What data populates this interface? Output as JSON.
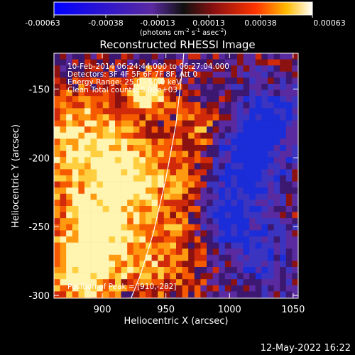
{
  "colorbar": {
    "tick_labels": [
      "-0.00063",
      "-0.00038",
      "-0.00013",
      "0.00013",
      "0.00038",
      "0.00063"
    ],
    "unit_label": "(photons cm",
    "unit_sup1": "-2",
    "unit_mid": " s",
    "unit_sup2": "-1",
    "unit_end": " asec",
    "unit_sup3": "-2",
    "unit_close": ")"
  },
  "chart_data": {
    "type": "heatmap",
    "title": "Reconstructed RHESSI Image",
    "xlabel": "Heliocentric X (arcsec)",
    "ylabel": "Heliocentric Y (arcsec)",
    "xlim": [
      862,
      1054
    ],
    "ylim": [
      -302,
      -124
    ],
    "x_ticks": [
      900,
      950,
      1000,
      1050
    ],
    "y_ticks": [
      -150,
      -200,
      -250,
      -300
    ],
    "colormap_range": [
      -0.00063,
      0.00063
    ],
    "annotations": [
      "10-Feb-2014 06:24:44.000 to 06:27:04.000",
      "Detectors: 3F 4F 5F 6F 7F 8F, Att 0",
      "Energy Range: 25.0 - 50.0 keV",
      "Clean    Total counts: 5.09e+03"
    ],
    "peak_label": "Position of Peak = [910,-282]",
    "peak": [
      910,
      -282
    ],
    "limb_curve": [
      [
        920,
        -308
      ],
      [
        930,
        -285
      ],
      [
        940,
        -255
      ],
      [
        950,
        -215
      ],
      [
        958,
        -175
      ],
      [
        963,
        -135
      ],
      [
        964,
        -124
      ]
    ]
  },
  "footer": {
    "timestamp": "12-May-2022 16:22"
  }
}
